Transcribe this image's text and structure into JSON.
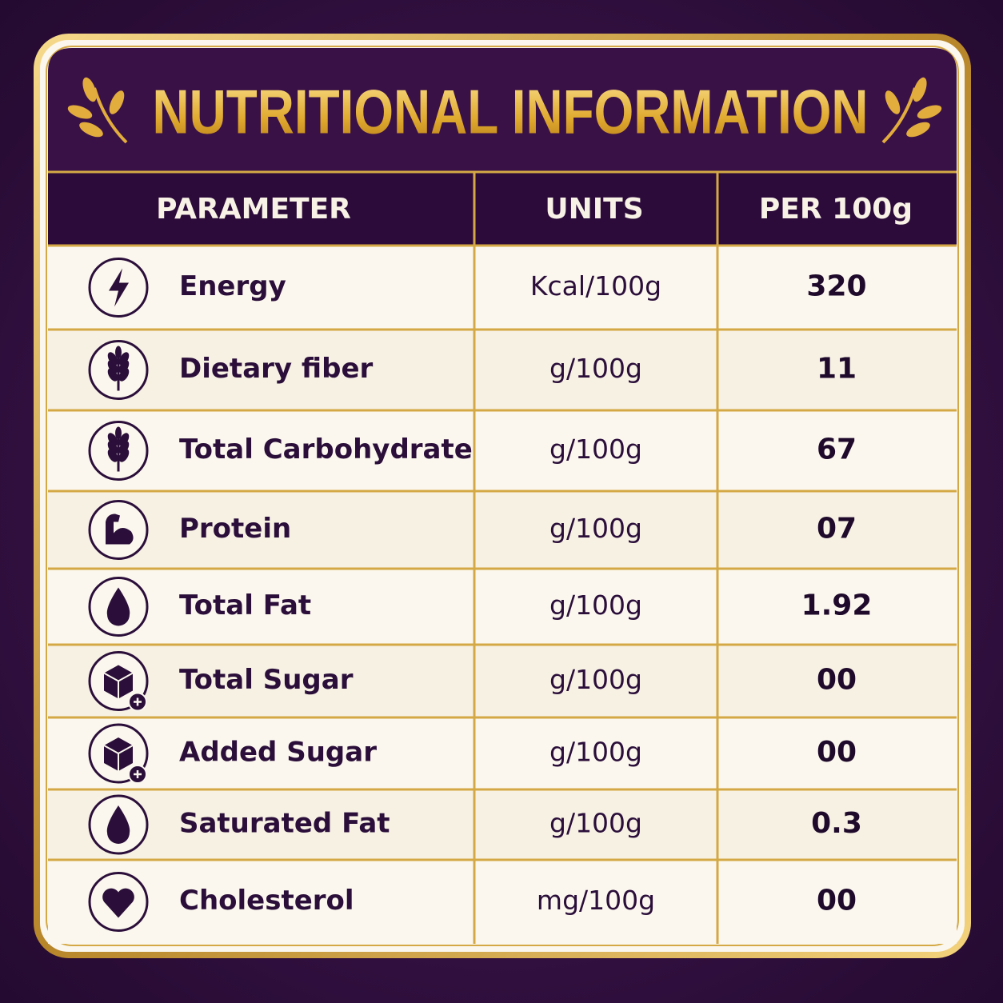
{
  "header": {
    "title": "NUTRITIONAL INFORMATION"
  },
  "table": {
    "columns": [
      "PARAMETER",
      "UNITS",
      "PER 100g"
    ],
    "rows": [
      [
        "Energy",
        "Kcal/100g",
        "320"
      ],
      [
        "Dietary fiber",
        "g/100g",
        "11"
      ],
      [
        "Total Carbohydrate",
        "g/100g",
        "67"
      ],
      [
        "Protein",
        "g/100g",
        "07"
      ],
      [
        "Total Fat",
        "g/100g",
        "1.92"
      ],
      [
        "Total Sugar",
        "g/100g",
        "00"
      ],
      [
        "Added Sugar",
        "g/100g",
        "00"
      ],
      [
        "Saturated Fat",
        "g/100g",
        "0.3"
      ],
      [
        "Cholesterol",
        "mg/100g",
        "00"
      ]
    ]
  }
}
